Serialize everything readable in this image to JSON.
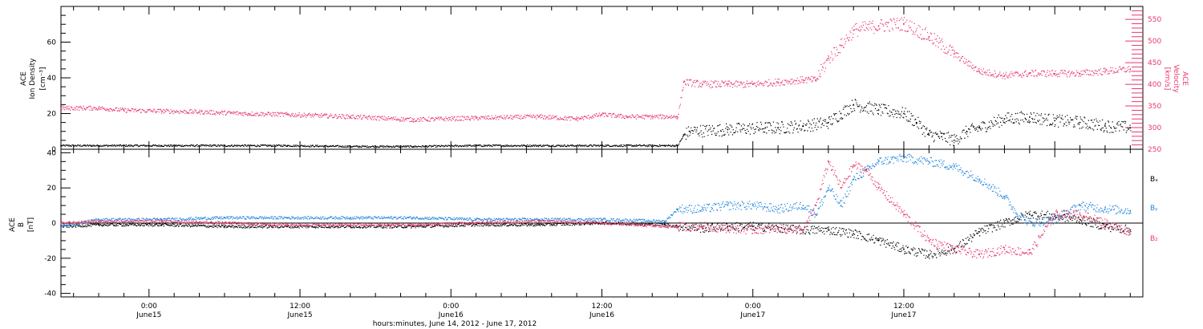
{
  "figure": {
    "xaxis_title": "hours:minutes, June 14, 2012 - June 17, 2012",
    "x_ticks": [
      {
        "time": "0:00",
        "day": "June15"
      },
      {
        "time": "12:00",
        "day": "June15"
      },
      {
        "time": "0:00",
        "day": "June16"
      },
      {
        "time": "12:00",
        "day": "June16"
      },
      {
        "time": "0:00",
        "day": "June17"
      },
      {
        "time": "12:00",
        "day": "June17"
      }
    ],
    "colors": {
      "black": "#000000",
      "pink": "#e8386b",
      "blue": "#1f84dc"
    }
  },
  "chart_data": [
    {
      "type": "scatter",
      "title": "",
      "x_unit": "hours since 2012-06-14 00:00",
      "xlim": [
        17,
        103
      ],
      "ylabel_left": [
        "ACE",
        "Ion Density",
        "[cm⁻³]"
      ],
      "ylabel_right": [
        "ACE",
        "Velocity",
        "[km/s]"
      ],
      "ylim_left": [
        0,
        80
      ],
      "ylim_right": [
        250,
        580
      ],
      "left_ticks": [
        0,
        20,
        40,
        60
      ],
      "right_ticks": [
        250,
        300,
        350,
        400,
        450,
        500,
        550
      ],
      "series": [
        {
          "name": "",
          "axis": "left",
          "color": "#000000",
          "x": [
            17,
            20,
            25,
            30,
            35,
            40,
            45,
            50,
            55,
            60,
            65,
            66,
            66.5,
            67,
            70,
            73,
            74,
            76,
            78,
            79,
            80,
            82,
            84,
            85,
            86,
            87,
            88,
            89,
            90,
            92,
            94,
            96,
            98,
            100,
            102
          ],
          "y": [
            2,
            2,
            2,
            2,
            2,
            1.5,
            1.5,
            2,
            2,
            2,
            2,
            2,
            8,
            10,
            11,
            12,
            12,
            13,
            15,
            20,
            25,
            22,
            20,
            15,
            8,
            7,
            5,
            10,
            12,
            17,
            18,
            16,
            15,
            13,
            12
          ]
        },
        {
          "name": "",
          "axis": "right",
          "color": "#e8386b",
          "x": [
            17,
            20,
            22,
            25,
            28,
            32,
            35,
            40,
            45,
            50,
            55,
            58,
            60,
            62,
            64,
            66,
            66.5,
            68,
            70,
            72,
            74,
            76,
            77,
            78,
            79,
            80,
            82,
            84,
            86,
            88,
            90,
            92,
            94,
            96,
            98,
            100,
            102
          ],
          "y": [
            345,
            345,
            340,
            338,
            336,
            332,
            330,
            325,
            318,
            322,
            325,
            320,
            330,
            325,
            325,
            325,
            405,
            400,
            400,
            400,
            405,
            410,
            410,
            460,
            490,
            525,
            535,
            540,
            510,
            470,
            430,
            420,
            425,
            425,
            425,
            430,
            435
          ]
        }
      ]
    },
    {
      "type": "scatter",
      "title": "",
      "x_unit": "hours since 2012-06-14 00:00",
      "xlim": [
        17,
        103
      ],
      "ylabel": [
        "ACE",
        "B",
        "[nT]"
      ],
      "ylim": [
        -42,
        42
      ],
      "y_ticks": [
        -40,
        -20,
        0,
        20,
        40
      ],
      "legend": [
        "Bₓ",
        "Bᵧ",
        "B₂"
      ],
      "legend_placement": "right",
      "series": [
        {
          "name": "Bx",
          "color": "#000000",
          "x": [
            17,
            20,
            25,
            30,
            35,
            40,
            45,
            50,
            55,
            60,
            65,
            66,
            68,
            70,
            72,
            74,
            76,
            78,
            80,
            82,
            84,
            86,
            88,
            90,
            92,
            94,
            96,
            98,
            100,
            102
          ],
          "y": [
            -2,
            -1,
            -1,
            -2,
            -2,
            -2,
            -2,
            -1,
            -1,
            0,
            -1,
            -2,
            -3,
            -2,
            -2,
            -3,
            -4,
            -4,
            -6,
            -10,
            -15,
            -18,
            -15,
            -5,
            0,
            5,
            4,
            2,
            -2,
            -4
          ]
        },
        {
          "name": "By",
          "color": "#1f84dc",
          "x": [
            17,
            20,
            25,
            30,
            35,
            40,
            45,
            50,
            55,
            60,
            65,
            66,
            68,
            70,
            72,
            74,
            76,
            77,
            78,
            79,
            80,
            81,
            82,
            84,
            86,
            88,
            90,
            92,
            93,
            94,
            96,
            98,
            100,
            102
          ],
          "y": [
            -2,
            2,
            2,
            3,
            3,
            3,
            3,
            2,
            2,
            2,
            1,
            8,
            8,
            10,
            10,
            8,
            10,
            5,
            20,
            10,
            25,
            30,
            35,
            37,
            35,
            32,
            25,
            15,
            5,
            0,
            2,
            10,
            8,
            7
          ]
        },
        {
          "name": "Bz",
          "color": "#e8386b",
          "x": [
            17,
            20,
            25,
            30,
            35,
            40,
            45,
            50,
            55,
            60,
            65,
            66,
            68,
            70,
            72,
            74,
            76,
            77,
            78,
            79,
            80,
            81,
            82,
            84,
            86,
            88,
            90,
            92,
            94,
            96,
            98,
            100,
            102
          ],
          "y": [
            0,
            1,
            1,
            0,
            -1,
            -1,
            -1,
            0,
            1,
            0,
            -2,
            -2,
            -2,
            -3,
            -4,
            -3,
            -4,
            10,
            35,
            20,
            33,
            30,
            20,
            5,
            -10,
            -15,
            -18,
            -15,
            -17,
            5,
            5,
            0,
            -5
          ]
        }
      ]
    }
  ]
}
